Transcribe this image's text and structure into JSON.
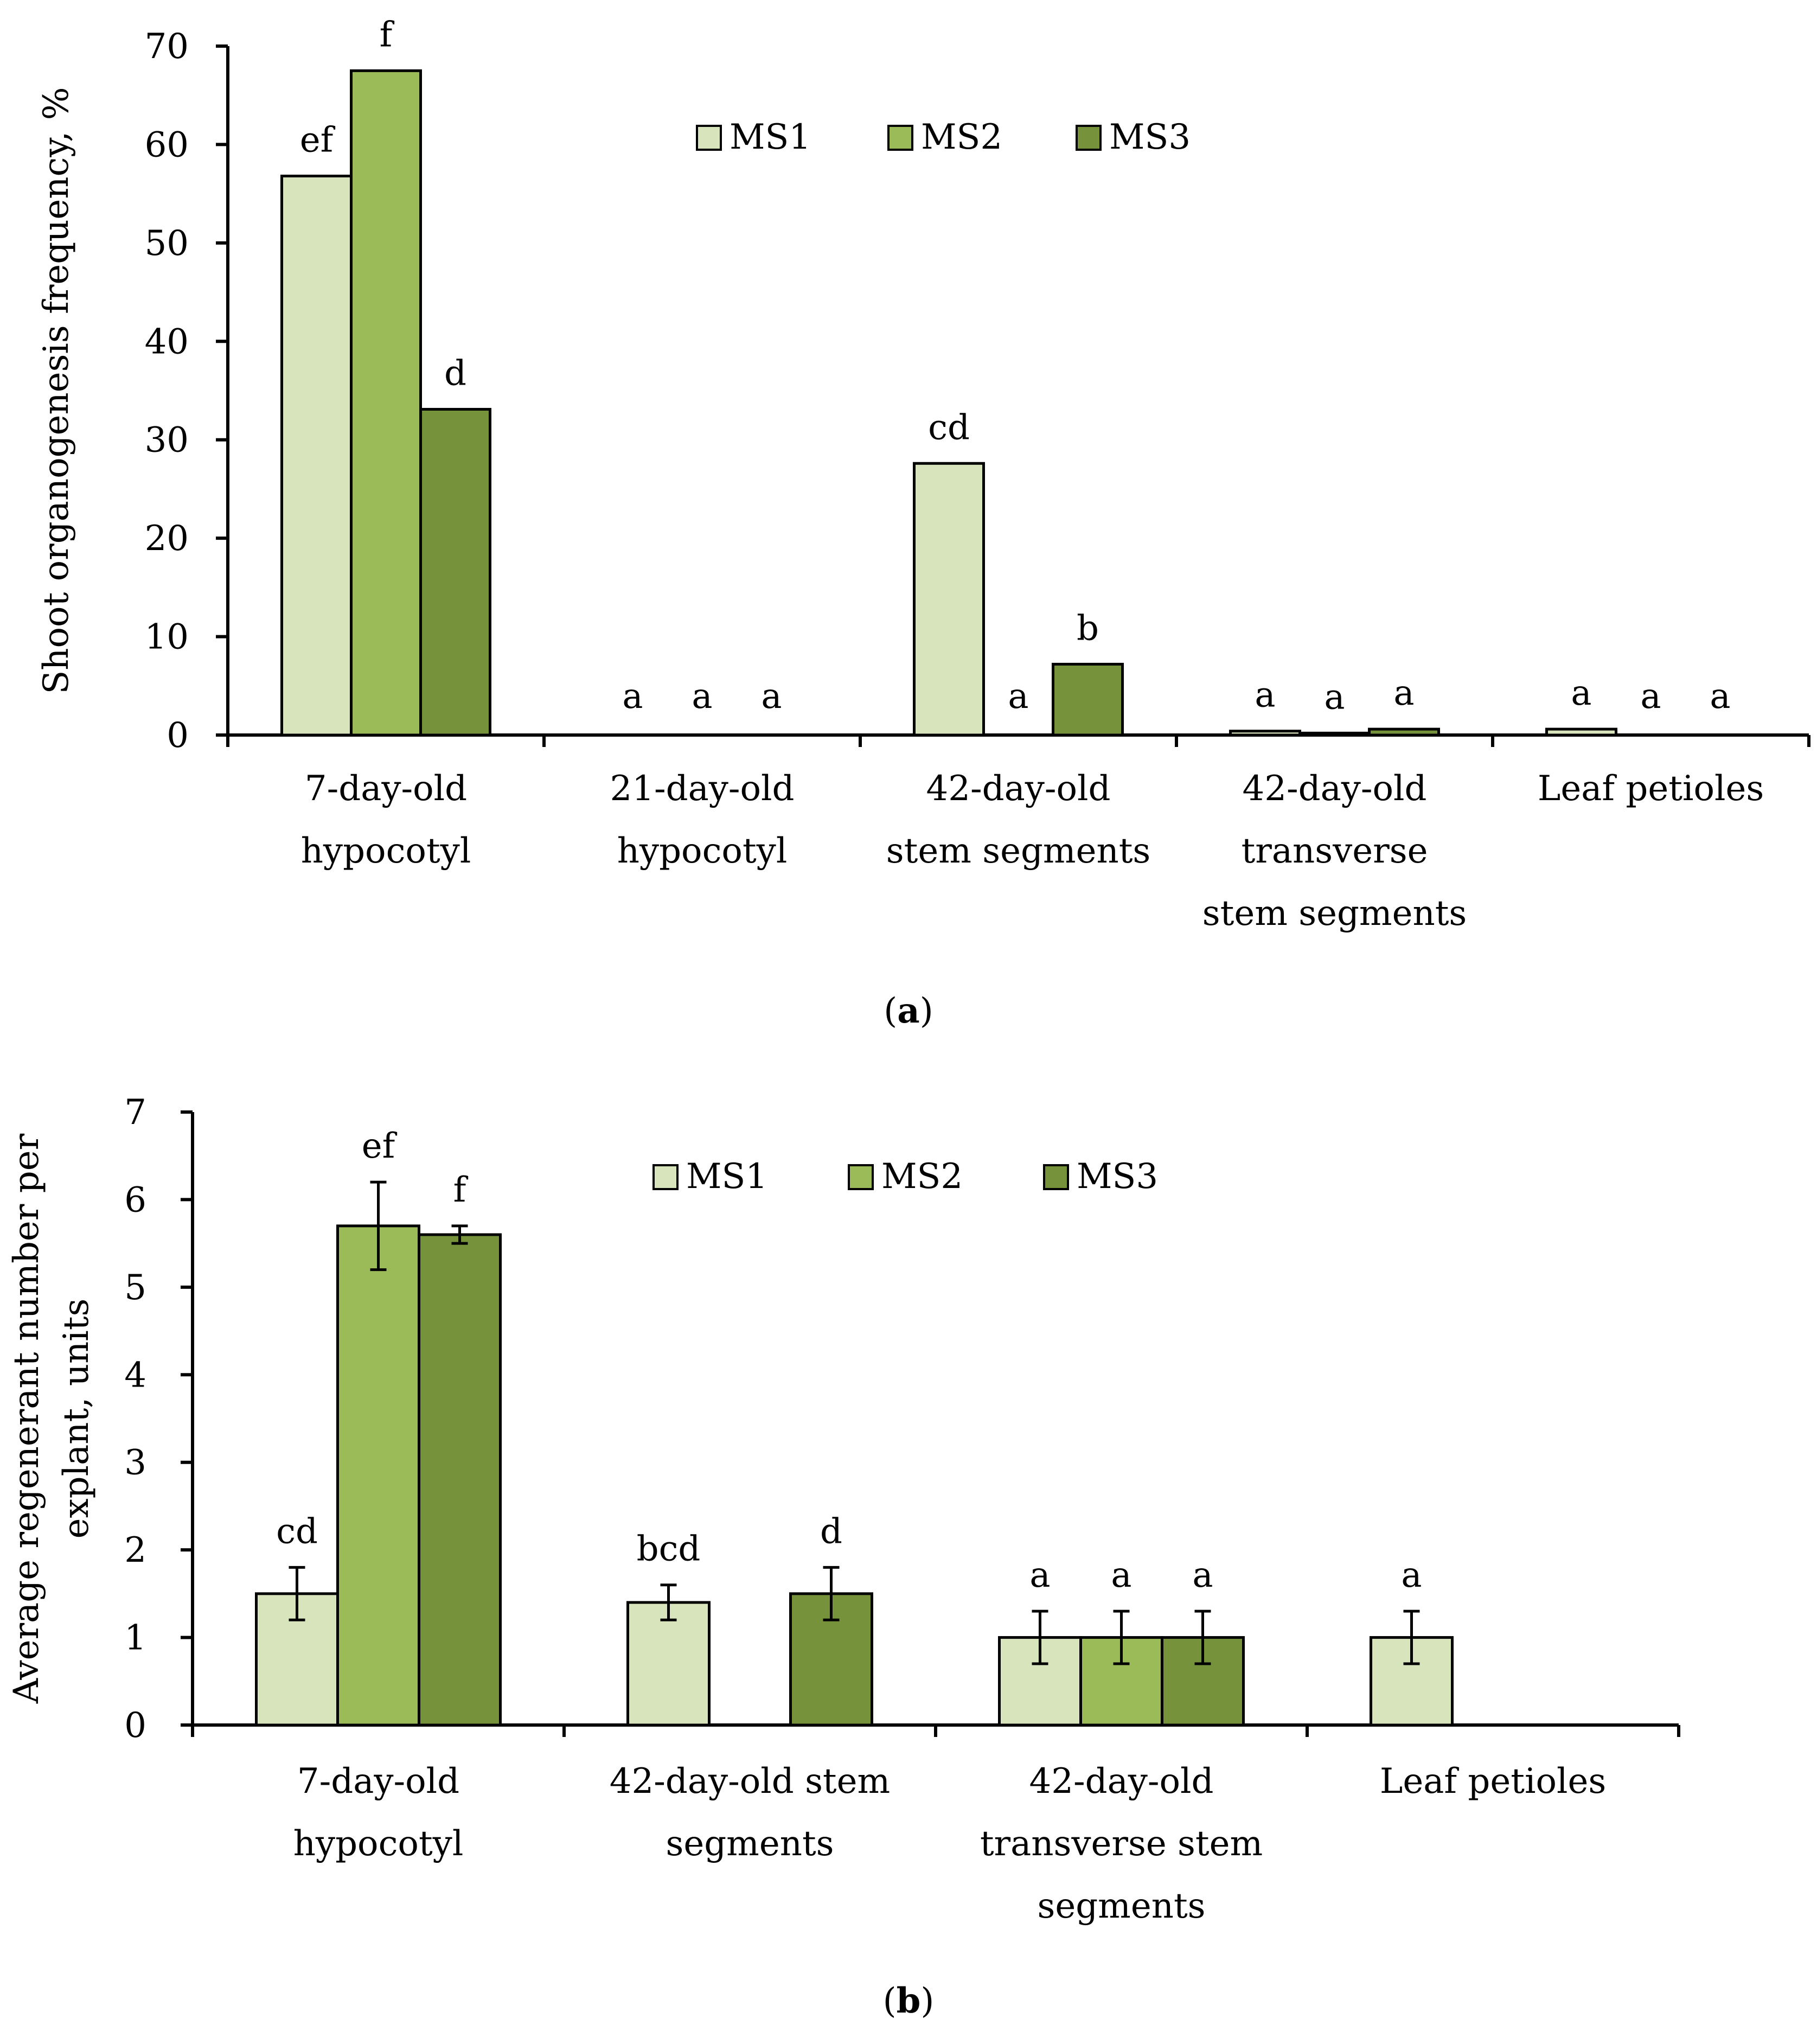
{
  "legend": [
    "MS1",
    "MS2",
    "MS3"
  ],
  "colors": {
    "MS1": "#d8e4bc",
    "MS2": "#9bbb59",
    "MS3": "#76933c"
  },
  "chart_data": [
    {
      "type": "bar",
      "caption": {
        "open": "(",
        "letter": "a",
        "close": ")"
      },
      "ylabel": "Shoot organogenesis frequency, %",
      "ylim": [
        0,
        70
      ],
      "yticks": [
        0,
        10,
        20,
        30,
        40,
        50,
        60,
        70
      ],
      "categories": [
        [
          "7-day-old",
          "hypocotyl"
        ],
        [
          "21-day-old",
          "hypocotyl"
        ],
        [
          "42-day-old",
          "stem segments"
        ],
        [
          "42-day-old",
          "transverse",
          "stem segments"
        ],
        [
          "Leaf petioles"
        ]
      ],
      "series": [
        {
          "name": "MS1",
          "values": [
            56.8,
            0,
            27.6,
            0.4,
            0.6
          ],
          "labels": [
            "ef",
            "a",
            "cd",
            "a",
            "a"
          ]
        },
        {
          "name": "MS2",
          "values": [
            67.5,
            0,
            0,
            0.2,
            0
          ],
          "labels": [
            "f",
            "a",
            "a",
            "a",
            "a"
          ]
        },
        {
          "name": "MS3",
          "values": [
            33.1,
            0,
            7.2,
            0.6,
            0
          ],
          "labels": [
            "d",
            "a",
            "b",
            "a",
            "a"
          ]
        }
      ],
      "legend_position": "top-center"
    },
    {
      "type": "bar",
      "caption": {
        "open": "(",
        "letter": "b",
        "close": ")"
      },
      "ylabel": [
        "Average regenerant number per",
        "explant, units"
      ],
      "ylim": [
        0,
        7
      ],
      "yticks": [
        0,
        1,
        2,
        3,
        4,
        5,
        6,
        7
      ],
      "categories": [
        [
          "7-day-old",
          "hypocotyl"
        ],
        [
          "42-day-old stem",
          "segments"
        ],
        [
          "42-day-old",
          "transverse stem",
          "segments"
        ],
        [
          "Leaf petioles"
        ]
      ],
      "series": [
        {
          "name": "MS1",
          "values": [
            1.5,
            1.4,
            1.0,
            1.0
          ],
          "errors": [
            0.3,
            0.2,
            0.3,
            0.3
          ],
          "labels": [
            "cd",
            "bcd",
            "a",
            "a"
          ]
        },
        {
          "name": "MS2",
          "values": [
            5.7,
            0,
            1.0,
            0
          ],
          "errors": [
            0.5,
            0,
            0.3,
            0
          ],
          "labels": [
            "ef",
            "",
            "a",
            ""
          ]
        },
        {
          "name": "MS3",
          "values": [
            5.6,
            1.5,
            1.0,
            0
          ],
          "errors": [
            0.1,
            0.3,
            0.3,
            0
          ],
          "labels": [
            "f",
            "d",
            "a",
            ""
          ]
        }
      ],
      "legend_position": "top-center"
    }
  ]
}
